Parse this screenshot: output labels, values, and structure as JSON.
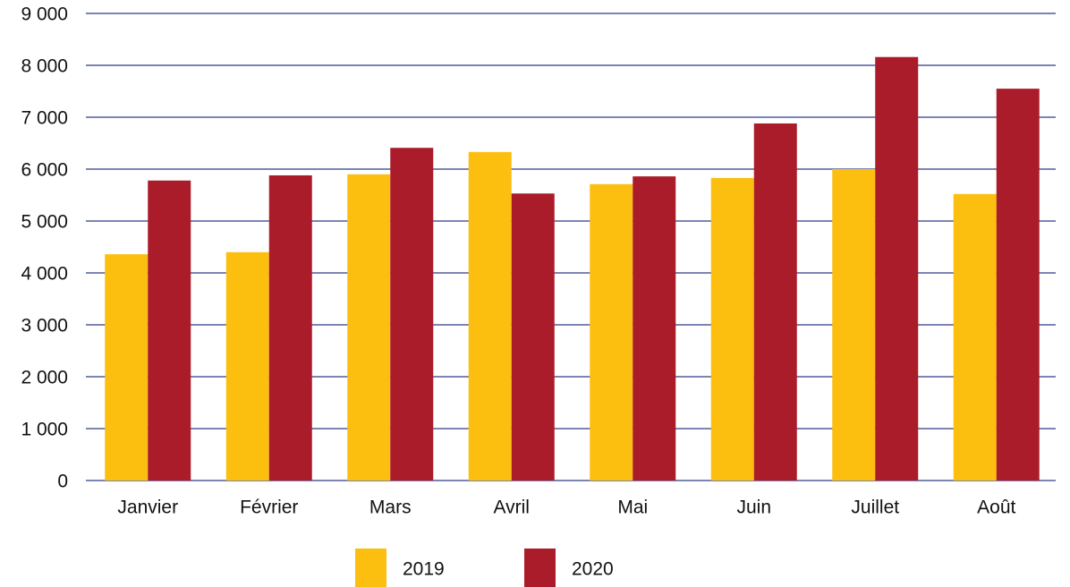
{
  "chart_data": {
    "type": "bar",
    "categories": [
      "Janvier",
      "Février",
      "Mars",
      "Avril",
      "Mai",
      "Juin",
      "Juillet",
      "Août"
    ],
    "series": [
      {
        "name": "2019",
        "color": "#fcbf10",
        "values": [
          4360,
          4400,
          5900,
          6330,
          5710,
          5830,
          6000,
          5520
        ]
      },
      {
        "name": "2020",
        "color": "#ab1c2a",
        "values": [
          5780,
          5880,
          6410,
          5530,
          5860,
          6880,
          8160,
          7550
        ]
      }
    ],
    "ylim": [
      0,
      9000
    ],
    "yticks": [
      0,
      {
        "value": 1000,
        "label": "1 000"
      },
      {
        "value": 2000,
        "label": "2 000"
      },
      {
        "value": 3000,
        "label": "3 000"
      },
      {
        "value": 4000,
        "label": "4 000"
      },
      {
        "value": 5000,
        "label": "5 000"
      },
      {
        "value": 6000,
        "label": "6 000"
      },
      {
        "value": 7000,
        "label": "7 000"
      },
      {
        "value": 8000,
        "label": "8 000"
      },
      {
        "value": 9000,
        "label": "9 000"
      }
    ],
    "grid": true,
    "legend": "bottom"
  }
}
